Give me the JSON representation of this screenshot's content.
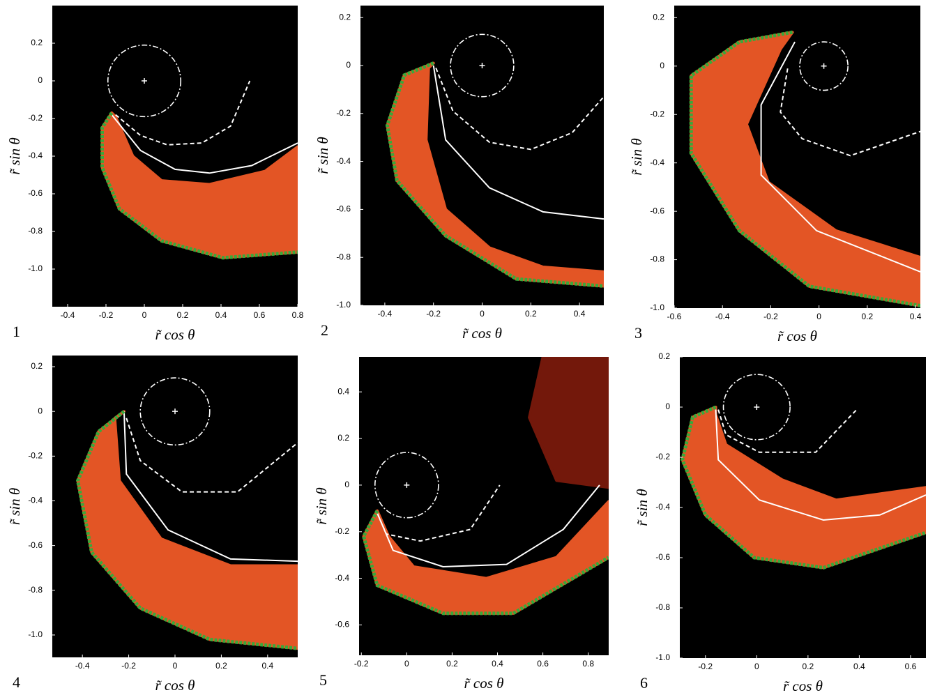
{
  "chart_data": [
    {
      "type": "spiral",
      "label": "1",
      "xlabel": "r̃ cos θ",
      "ylabel": "r̃ sin θ",
      "xlim": [
        -0.48,
        0.8
      ],
      "ylim": [
        -1.2,
        0.4
      ],
      "xticks": [
        -0.4,
        -0.2,
        0,
        0.2,
        0.4,
        0.6,
        0.8
      ],
      "yticks": [
        0.2,
        0,
        -0.2,
        -0.4,
        -0.6,
        -0.8,
        {
          "value": -1,
          "label": "-1.0"
        }
      ],
      "circle": {
        "x": 0,
        "y": 0,
        "r": 0.19,
        "color": "#ffffff"
      },
      "series": [
        {
          "style": "fill",
          "color": "#f05a28",
          "x": [
            -0.17,
            -0.22,
            -0.22,
            -0.13,
            0.09,
            0.41,
            0.8,
            0.8,
            0.63,
            0.34,
            0.09,
            -0.06,
            -0.15
          ],
          "y": [
            -0.17,
            -0.25,
            -0.46,
            -0.68,
            -0.85,
            -0.94,
            -0.91,
            -0.35,
            -0.48,
            -0.55,
            -0.53,
            -0.4,
            -0.19
          ]
        },
        {
          "style": "dashed",
          "color": "#ffffff",
          "x": [
            -0.15,
            -0.02,
            0.12,
            0.3,
            0.45,
            0.55
          ],
          "y": [
            -0.18,
            -0.29,
            -0.34,
            -0.33,
            -0.24,
            0
          ]
        },
        {
          "style": "solid",
          "color": "#ffffff",
          "x": [
            -0.17,
            -0.02,
            0.16,
            0.34,
            0.56,
            0.8
          ],
          "y": [
            -0.18,
            -0.37,
            -0.47,
            -0.49,
            -0.45,
            -0.33
          ]
        },
        {
          "style": "dotted",
          "color": "#3aa83a",
          "x": [
            -0.17,
            -0.22,
            -0.22,
            -0.13,
            0.09,
            0.41,
            0.8
          ],
          "y": [
            -0.17,
            -0.25,
            -0.46,
            -0.68,
            -0.85,
            -0.94,
            -0.91
          ]
        }
      ]
    },
    {
      "type": "spiral",
      "label": "2",
      "xlabel": "r̃ cos θ",
      "ylabel": "r̃ sin θ",
      "xlim": [
        -0.5,
        0.5
      ],
      "ylim": [
        -1.0,
        0.25
      ],
      "xticks": [
        -0.4,
        -0.2,
        0,
        0.2,
        0.4
      ],
      "yticks": [
        0.2,
        0,
        -0.2,
        -0.4,
        -0.6,
        -0.8,
        {
          "value": -1,
          "label": "-1.0"
        }
      ],
      "circle": {
        "x": 0,
        "y": 0,
        "r": 0.13,
        "color": "#ffffff"
      },
      "series": [
        {
          "style": "fill",
          "color": "#f05a28",
          "x": [
            -0.2,
            -0.32,
            -0.39,
            -0.35,
            -0.15,
            0.14,
            0.5,
            0.5,
            0.25,
            0.03,
            -0.15,
            -0.23,
            -0.22
          ],
          "y": [
            0.01,
            -0.04,
            -0.25,
            -0.48,
            -0.71,
            -0.89,
            -0.92,
            -0.86,
            -0.84,
            -0.76,
            -0.6,
            -0.31,
            -0.01
          ]
        },
        {
          "style": "dashed",
          "color": "#ffffff",
          "x": [
            -0.19,
            -0.12,
            0.03,
            0.2,
            0.37,
            0.5
          ],
          "y": [
            -0.01,
            -0.19,
            -0.32,
            -0.35,
            -0.28,
            -0.13
          ]
        },
        {
          "style": "solid",
          "color": "#ffffff",
          "x": [
            -0.2,
            -0.15,
            0.03,
            0.25,
            0.5
          ],
          "y": [
            0,
            -0.31,
            -0.51,
            -0.61,
            -0.64
          ]
        },
        {
          "style": "dotted",
          "color": "#3aa83a",
          "x": [
            -0.2,
            -0.32,
            -0.39,
            -0.35,
            -0.15,
            0.14,
            0.5
          ],
          "y": [
            0.01,
            -0.04,
            -0.25,
            -0.48,
            -0.71,
            -0.89,
            -0.92
          ]
        }
      ]
    },
    {
      "type": "spiral",
      "label": "3",
      "xlabel": "r̃ cos θ",
      "ylabel": "r̃ sin θ",
      "xlim": [
        -0.6,
        0.42
      ],
      "ylim": [
        -1.0,
        0.25
      ],
      "xticks": [
        -0.6,
        -0.4,
        -0.2,
        0,
        0.2,
        0.4
      ],
      "yticks": [
        0.2,
        0,
        -0.2,
        -0.4,
        -0.6,
        -0.8,
        {
          "value": -1,
          "label": "-1.0"
        }
      ],
      "circle": {
        "x": 0.02,
        "y": 0,
        "r": 0.1,
        "color": "#ffffff"
      },
      "series": [
        {
          "style": "fill",
          "color": "#f05a28",
          "x": [
            -0.11,
            -0.33,
            -0.53,
            -0.53,
            -0.33,
            -0.04,
            0.42,
            0.42,
            0.07,
            -0.21,
            -0.3,
            -0.16
          ],
          "y": [
            0.14,
            0.1,
            -0.04,
            -0.36,
            -0.68,
            -0.91,
            -0.99,
            -0.79,
            -0.68,
            -0.48,
            -0.24,
            0.07
          ]
        },
        {
          "style": "dashed",
          "color": "#ffffff",
          "x": [
            -0.13,
            -0.16,
            -0.07,
            0.13,
            0.42
          ],
          "y": [
            -0.01,
            -0.19,
            -0.3,
            -0.37,
            -0.27
          ]
        },
        {
          "style": "solid",
          "color": "#ffffff",
          "x": [
            -0.1,
            -0.24,
            -0.24,
            -0.01,
            0.42
          ],
          "y": [
            0.1,
            -0.16,
            -0.45,
            -0.68,
            -0.85
          ]
        },
        {
          "style": "dotted",
          "color": "#3aa83a",
          "x": [
            -0.11,
            -0.33,
            -0.53,
            -0.53,
            -0.33,
            -0.04,
            0.42
          ],
          "y": [
            0.14,
            0.1,
            -0.04,
            -0.36,
            -0.68,
            -0.91,
            -0.99
          ]
        }
      ]
    },
    {
      "type": "spiral",
      "label": "4",
      "xlabel": "r̃ cos θ",
      "ylabel": "r̃ sin θ",
      "xlim": [
        -0.53,
        0.53
      ],
      "ylim": [
        -1.1,
        0.25
      ],
      "xticks": [
        -0.4,
        -0.2,
        0,
        0.2,
        0.4
      ],
      "yticks": [
        0.2,
        0,
        -0.2,
        -0.4,
        -0.6,
        -0.8,
        {
          "value": -1,
          "label": "-1.0"
        }
      ],
      "circle": {
        "x": 0,
        "y": 0,
        "r": 0.15,
        "color": "#ffffff"
      },
      "series": [
        {
          "style": "fill",
          "color": "#f05a28",
          "x": [
            -0.22,
            -0.33,
            -0.42,
            -0.36,
            -0.15,
            0.15,
            0.53,
            0.53,
            0.24,
            -0.06,
            -0.24,
            -0.26
          ],
          "y": [
            0,
            -0.09,
            -0.31,
            -0.63,
            -0.88,
            -1.02,
            -1.06,
            -0.69,
            -0.69,
            -0.57,
            -0.31,
            -0.03
          ]
        },
        {
          "style": "dashed",
          "color": "#ffffff",
          "x": [
            -0.21,
            -0.15,
            0.03,
            0.27,
            0.53
          ],
          "y": [
            -0.03,
            -0.22,
            -0.36,
            -0.36,
            -0.14
          ]
        },
        {
          "style": "solid",
          "color": "#ffffff",
          "x": [
            -0.22,
            -0.21,
            -0.03,
            0.24,
            0.53
          ],
          "y": [
            0,
            -0.28,
            -0.53,
            -0.66,
            -0.67
          ]
        },
        {
          "style": "dotted",
          "color": "#3aa83a",
          "x": [
            -0.22,
            -0.33,
            -0.42,
            -0.36,
            -0.15,
            0.15,
            0.53
          ],
          "y": [
            0,
            -0.09,
            -0.31,
            -0.63,
            -0.88,
            -1.02,
            -1.06
          ]
        }
      ]
    },
    {
      "type": "spiral",
      "label": "5",
      "xlabel": "r̃ cos θ",
      "ylabel": "r̃ sin θ",
      "xlim": [
        -0.21,
        0.89
      ],
      "ylim": [
        -0.73,
        0.55
      ],
      "xticks": [
        -0.2,
        0,
        0.2,
        0.4,
        0.6,
        0.8
      ],
      "yticks": [
        0.4,
        0.2,
        0,
        -0.2,
        -0.4,
        -0.6
      ],
      "circle": {
        "x": 0,
        "y": 0,
        "r": 0.14,
        "color": "#ffffff"
      },
      "series": [
        {
          "style": "fill",
          "color": "#7a1a0c",
          "x": [
            0.6,
            0.89,
            0.89,
            0.66,
            0.54
          ],
          "y": [
            0.55,
            0.55,
            -0.01,
            0.02,
            0.29
          ]
        },
        {
          "style": "fill",
          "color": "#f05a28",
          "x": [
            -0.13,
            -0.19,
            -0.13,
            0.16,
            0.47,
            0.89,
            0.89,
            0.66,
            0.35,
            0.03,
            -0.08
          ],
          "y": [
            -0.11,
            -0.22,
            -0.43,
            -0.55,
            -0.55,
            -0.31,
            -0.07,
            -0.31,
            -0.4,
            -0.35,
            -0.22
          ]
        },
        {
          "style": "dashed",
          "color": "#ffffff",
          "x": [
            -0.13,
            -0.09,
            0.06,
            0.28,
            0.41
          ],
          "y": [
            -0.12,
            -0.21,
            -0.24,
            -0.19,
            0
          ]
        },
        {
          "style": "solid",
          "color": "#ffffff",
          "x": [
            -0.13,
            -0.06,
            0.16,
            0.44,
            0.69,
            0.85
          ],
          "y": [
            -0.12,
            -0.28,
            -0.35,
            -0.34,
            -0.19,
            0
          ]
        },
        {
          "style": "dotted",
          "color": "#3aa83a",
          "x": [
            -0.13,
            -0.19,
            -0.13,
            0.16,
            0.47,
            0.89
          ],
          "y": [
            -0.11,
            -0.22,
            -0.43,
            -0.55,
            -0.55,
            -0.31
          ]
        }
      ]
    },
    {
      "type": "spiral",
      "label": "6",
      "xlabel": "r̃ cos θ",
      "ylabel": "r̃ sin θ",
      "xlim": [
        -0.3,
        0.66
      ],
      "ylim": [
        -1.0,
        0.2
      ],
      "xticks": [
        -0.2,
        0,
        0.2,
        0.4,
        0.6
      ],
      "yticks": [
        0.2,
        0,
        -0.2,
        -0.4,
        -0.6,
        -0.8,
        {
          "value": -1,
          "label": "-1.0"
        }
      ],
      "circle": {
        "x": 0,
        "y": 0,
        "r": 0.13,
        "color": "#ffffff"
      },
      "series": [
        {
          "style": "fill",
          "color": "#f05a28",
          "x": [
            -0.16,
            -0.25,
            -0.29,
            -0.2,
            -0.01,
            0.26,
            0.66,
            0.66,
            0.31,
            0.1,
            -0.12,
            -0.16
          ],
          "y": [
            0,
            -0.04,
            -0.21,
            -0.43,
            -0.6,
            -0.64,
            -0.5,
            -0.32,
            -0.37,
            -0.29,
            -0.15,
            -0.03
          ]
        },
        {
          "style": "dashed",
          "color": "#ffffff",
          "x": [
            -0.15,
            -0.12,
            0.01,
            0.23,
            0.39
          ],
          "y": [
            -0.01,
            -0.11,
            -0.18,
            -0.18,
            -0.01
          ]
        },
        {
          "style": "solid",
          "color": "#ffffff",
          "x": [
            -0.16,
            -0.15,
            0.01,
            0.26,
            0.48,
            0.66
          ],
          "y": [
            -0.01,
            -0.21,
            -0.37,
            -0.45,
            -0.43,
            -0.35
          ]
        },
        {
          "style": "dotted",
          "color": "#3aa83a",
          "x": [
            -0.16,
            -0.25,
            -0.29,
            -0.2,
            -0.01,
            0.26,
            0.66
          ],
          "y": [
            0,
            -0.04,
            -0.21,
            -0.43,
            -0.6,
            -0.64,
            -0.5
          ]
        }
      ]
    }
  ]
}
